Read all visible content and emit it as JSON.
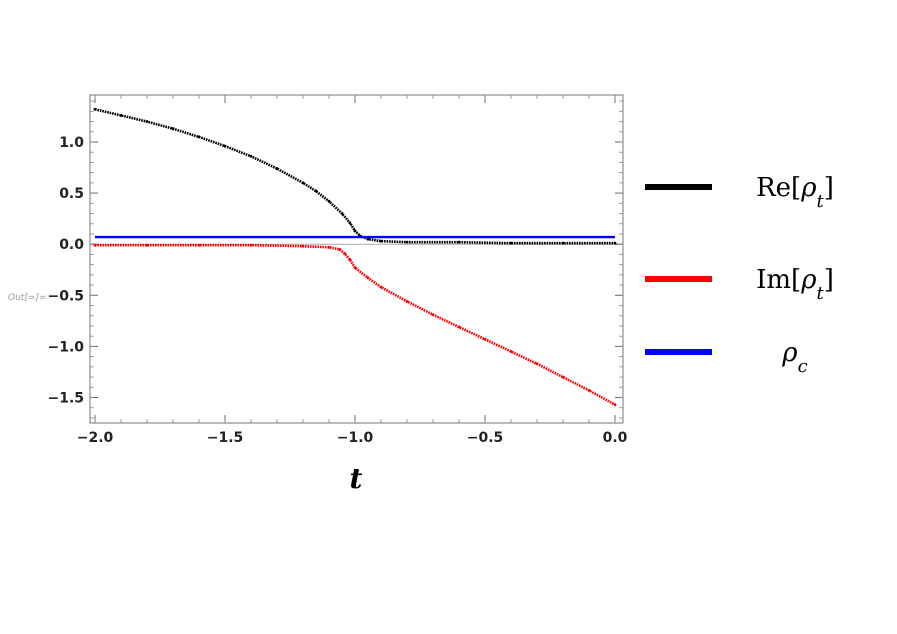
{
  "notebook": {
    "out_label": "Out[=]="
  },
  "chart_data": {
    "type": "line",
    "title": "",
    "xlabel": "t",
    "ylabel": "",
    "xlim": [
      -2.0,
      0.0
    ],
    "ylim": [
      -1.72,
      1.45
    ],
    "x_ticks": [
      -2.0,
      -1.5,
      -1.0,
      -0.5,
      0.0
    ],
    "x_tick_labels": [
      "-2.0",
      "-1.5",
      "-1.0",
      "-0.5",
      "0.0"
    ],
    "y_ticks": [
      1.0,
      0.5,
      0.0,
      -0.5,
      -1.0,
      -1.5
    ],
    "y_tick_labels": [
      "1.0",
      "0.5",
      "0.0",
      "-0.5",
      "-1.0",
      "-1.5"
    ],
    "grid": false,
    "legend_position": "right",
    "series": [
      {
        "name": "Re[ρt]",
        "legend": {
          "base": "Re[",
          "symbol": "ρ",
          "sub": "t",
          "close": "]"
        },
        "color": "#000000",
        "style": "dots",
        "x": [
          -2.0,
          -1.9,
          -1.8,
          -1.7,
          -1.6,
          -1.5,
          -1.4,
          -1.3,
          -1.2,
          -1.15,
          -1.1,
          -1.05,
          -1.02,
          -1.0,
          -0.98,
          -0.95,
          -0.9,
          -0.8,
          -0.6,
          -0.4,
          -0.2,
          0.0
        ],
        "y": [
          1.32,
          1.26,
          1.2,
          1.13,
          1.05,
          0.96,
          0.86,
          0.74,
          0.6,
          0.52,
          0.42,
          0.3,
          0.21,
          0.13,
          0.08,
          0.05,
          0.03,
          0.02,
          0.02,
          0.01,
          0.01,
          0.01
        ]
      },
      {
        "name": "Im[ρt]",
        "legend": {
          "base": "Im[",
          "symbol": "ρ",
          "sub": "t",
          "close": "]"
        },
        "color": "#ff0000",
        "style": "dots",
        "x": [
          -2.0,
          -1.8,
          -1.6,
          -1.4,
          -1.2,
          -1.1,
          -1.06,
          -1.04,
          -1.02,
          -1.0,
          -0.95,
          -0.9,
          -0.8,
          -0.7,
          -0.6,
          -0.5,
          -0.4,
          -0.3,
          -0.2,
          -0.1,
          0.0
        ],
        "y": [
          -0.01,
          -0.01,
          -0.01,
          -0.01,
          -0.02,
          -0.03,
          -0.05,
          -0.09,
          -0.15,
          -0.23,
          -0.33,
          -0.42,
          -0.56,
          -0.69,
          -0.81,
          -0.93,
          -1.05,
          -1.17,
          -1.3,
          -1.43,
          -1.57
        ]
      },
      {
        "name": "ρc",
        "legend": {
          "base": "",
          "symbol": "ρ",
          "sub": "c",
          "close": ""
        },
        "color": "#0000ff",
        "style": "line",
        "x": [
          -2.0,
          0.0
        ],
        "y": [
          0.07,
          0.07
        ]
      }
    ]
  }
}
